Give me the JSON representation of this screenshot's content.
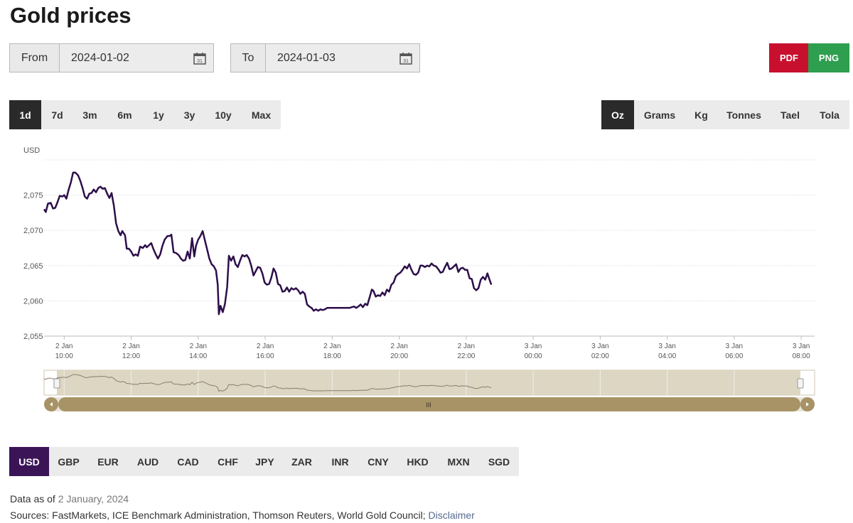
{
  "page": {
    "title": "Gold prices"
  },
  "date_range": {
    "from_label": "From",
    "from_value": "2024-01-02",
    "to_label": "To",
    "to_value": "2024-01-03",
    "calendar_day": "31"
  },
  "export": {
    "pdf_label": "PDF",
    "png_label": "PNG",
    "pdf_color": "#c8102e",
    "png_color": "#2e9e4f"
  },
  "range_buttons": [
    "1d",
    "7d",
    "3m",
    "6m",
    "1y",
    "3y",
    "10y",
    "Max"
  ],
  "range_active": "1d",
  "unit_buttons": [
    "Oz",
    "Grams",
    "Kg",
    "Tonnes",
    "Tael",
    "Tola"
  ],
  "unit_active": "Oz",
  "currency_buttons": [
    "USD",
    "GBP",
    "EUR",
    "AUD",
    "CAD",
    "CHF",
    "JPY",
    "ZAR",
    "INR",
    "CNY",
    "HKD",
    "MXN",
    "SGD"
  ],
  "currency_active": "USD",
  "navigator": {
    "handle_label": "III"
  },
  "footer": {
    "data_as_of_label": "Data as of",
    "data_as_of_value": "2 January, 2024",
    "sources_label": "Sources: FastMarkets, ICE Benchmark Administration, Thomson Reuters, World Gold Council;",
    "disclaimer_label": "Disclaimer"
  },
  "chart_data": {
    "type": "line",
    "title": "",
    "ylabel": "USD",
    "ylim": [
      2055,
      2080
    ],
    "yticks": [
      2055,
      2060,
      2065,
      2070,
      2075
    ],
    "ytick_labels": [
      "2,055",
      "2,060",
      "2,065",
      "2,070",
      "2,075"
    ],
    "xlim": [
      "2024-01-02 09:24",
      "2024-01-03 08:24"
    ],
    "xticks": [
      {
        "date": "2 Jan",
        "time": "10:00",
        "t": "2024-01-02 10:00"
      },
      {
        "date": "2 Jan",
        "time": "12:00",
        "t": "2024-01-02 12:00"
      },
      {
        "date": "2 Jan",
        "time": "14:00",
        "t": "2024-01-02 14:00"
      },
      {
        "date": "2 Jan",
        "time": "16:00",
        "t": "2024-01-02 16:00"
      },
      {
        "date": "2 Jan",
        "time": "18:00",
        "t": "2024-01-02 18:00"
      },
      {
        "date": "2 Jan",
        "time": "20:00",
        "t": "2024-01-02 20:00"
      },
      {
        "date": "2 Jan",
        "time": "22:00",
        "t": "2024-01-02 22:00"
      },
      {
        "date": "3 Jan",
        "time": "00:00",
        "t": "2024-01-03 00:00"
      },
      {
        "date": "3 Jan",
        "time": "02:00",
        "t": "2024-01-03 02:00"
      },
      {
        "date": "3 Jan",
        "time": "04:00",
        "t": "2024-01-03 04:00"
      },
      {
        "date": "3 Jan",
        "time": "06:00",
        "t": "2024-01-03 06:00"
      },
      {
        "date": "3 Jan",
        "time": "08:00",
        "t": "2024-01-03 08:00"
      }
    ],
    "grid": true,
    "line_color": "#2d0f4a",
    "series": [
      {
        "points": [
          [
            "2024-01-02 09:24",
            2073.0
          ],
          [
            "2024-01-02 09:27",
            2072.6
          ],
          [
            "2024-01-02 09:31",
            2073.8
          ],
          [
            "2024-01-02 09:36",
            2073.9
          ],
          [
            "2024-01-02 09:40",
            2073.1
          ],
          [
            "2024-01-02 09:44",
            2073.2
          ],
          [
            "2024-01-02 09:48",
            2074.0
          ],
          [
            "2024-01-02 09:52",
            2074.9
          ],
          [
            "2024-01-02 09:57",
            2074.8
          ],
          [
            "2024-01-02 10:00",
            2075.0
          ],
          [
            "2024-01-02 10:04",
            2074.5
          ],
          [
            "2024-01-02 10:08",
            2075.8
          ],
          [
            "2024-01-02 10:12",
            2076.8
          ],
          [
            "2024-01-02 10:16",
            2078.2
          ],
          [
            "2024-01-02 10:20",
            2078.2
          ],
          [
            "2024-01-02 10:25",
            2077.8
          ],
          [
            "2024-01-02 10:29",
            2077.0
          ],
          [
            "2024-01-02 10:33",
            2076.0
          ],
          [
            "2024-01-02 10:37",
            2074.8
          ],
          [
            "2024-01-02 10:41",
            2074.5
          ],
          [
            "2024-01-02 10:45",
            2075.2
          ],
          [
            "2024-01-02 10:49",
            2075.3
          ],
          [
            "2024-01-02 10:53",
            2075.8
          ],
          [
            "2024-01-02 10:57",
            2075.4
          ],
          [
            "2024-01-02 11:01",
            2076.0
          ],
          [
            "2024-01-02 11:05",
            2076.2
          ],
          [
            "2024-01-02 11:09",
            2075.9
          ],
          [
            "2024-01-02 11:13",
            2076.0
          ],
          [
            "2024-01-02 11:17",
            2075.2
          ],
          [
            "2024-01-02 11:21",
            2074.6
          ],
          [
            "2024-01-02 11:25",
            2075.3
          ],
          [
            "2024-01-02 11:29",
            2073.5
          ],
          [
            "2024-01-02 11:33",
            2071.0
          ],
          [
            "2024-01-02 11:37",
            2069.9
          ],
          [
            "2024-01-02 11:41",
            2069.3
          ],
          [
            "2024-01-02 11:44",
            2069.9
          ],
          [
            "2024-01-02 11:49",
            2069.3
          ],
          [
            "2024-01-02 11:52",
            2067.4
          ],
          [
            "2024-01-02 11:56",
            2067.4
          ],
          [
            "2024-01-02 12:00",
            2067.0
          ],
          [
            "2024-01-02 12:04",
            2066.4
          ],
          [
            "2024-01-02 12:08",
            2066.6
          ],
          [
            "2024-01-02 12:12",
            2066.4
          ],
          [
            "2024-01-02 12:16",
            2067.7
          ],
          [
            "2024-01-02 12:21",
            2067.5
          ],
          [
            "2024-01-02 12:25",
            2067.9
          ],
          [
            "2024-01-02 12:28",
            2067.6
          ],
          [
            "2024-01-02 12:32",
            2067.9
          ],
          [
            "2024-01-02 12:36",
            2068.2
          ],
          [
            "2024-01-02 12:40",
            2067.3
          ],
          [
            "2024-01-02 12:44",
            2066.6
          ],
          [
            "2024-01-02 12:48",
            2066.0
          ],
          [
            "2024-01-02 12:52",
            2066.6
          ],
          [
            "2024-01-02 12:56",
            2067.8
          ],
          [
            "2024-01-02 13:00",
            2068.7
          ],
          [
            "2024-01-02 13:05",
            2069.2
          ],
          [
            "2024-01-02 13:09",
            2069.2
          ],
          [
            "2024-01-02 13:12",
            2069.4
          ],
          [
            "2024-01-02 13:16",
            2066.9
          ],
          [
            "2024-01-02 13:20",
            2066.8
          ],
          [
            "2024-01-02 13:25",
            2066.5
          ],
          [
            "2024-01-02 13:29",
            2066.0
          ],
          [
            "2024-01-02 13:33",
            2065.7
          ],
          [
            "2024-01-02 13:37",
            2065.8
          ],
          [
            "2024-01-02 13:41",
            2067.0
          ],
          [
            "2024-01-02 13:45",
            2066.0
          ],
          [
            "2024-01-02 13:49",
            2068.9
          ],
          [
            "2024-01-02 13:53",
            2066.3
          ],
          [
            "2024-01-02 13:56",
            2067.8
          ],
          [
            "2024-01-02 14:00",
            2068.7
          ],
          [
            "2024-01-02 14:04",
            2069.2
          ],
          [
            "2024-01-02 14:08",
            2069.9
          ],
          [
            "2024-01-02 14:12",
            2068.6
          ],
          [
            "2024-01-02 14:16",
            2067.3
          ],
          [
            "2024-01-02 14:20",
            2066.0
          ],
          [
            "2024-01-02 14:24",
            2065.2
          ],
          [
            "2024-01-02 14:28",
            2064.9
          ],
          [
            "2024-01-02 14:32",
            2064.3
          ],
          [
            "2024-01-02 14:35",
            2062.3
          ],
          [
            "2024-01-02 14:37",
            2058.1
          ],
          [
            "2024-01-02 14:40",
            2059.3
          ],
          [
            "2024-01-02 14:44",
            2058.4
          ],
          [
            "2024-01-02 14:48",
            2059.6
          ],
          [
            "2024-01-02 14:52",
            2062.0
          ],
          [
            "2024-01-02 14:55",
            2066.4
          ],
          [
            "2024-01-02 14:59",
            2065.7
          ],
          [
            "2024-01-02 15:03",
            2066.3
          ],
          [
            "2024-01-02 15:07",
            2065.2
          ],
          [
            "2024-01-02 15:11",
            2064.8
          ],
          [
            "2024-01-02 15:15",
            2065.7
          ],
          [
            "2024-01-02 15:19",
            2066.5
          ],
          [
            "2024-01-02 15:23",
            2066.3
          ],
          [
            "2024-01-02 15:27",
            2066.5
          ],
          [
            "2024-01-02 15:31",
            2066.0
          ],
          [
            "2024-01-02 15:35",
            2065.0
          ],
          [
            "2024-01-02 15:39",
            2063.6
          ],
          [
            "2024-01-02 15:43",
            2064.2
          ],
          [
            "2024-01-02 15:47",
            2064.8
          ],
          [
            "2024-01-02 15:51",
            2064.7
          ],
          [
            "2024-01-02 15:55",
            2063.9
          ],
          [
            "2024-01-02 15:59",
            2062.6
          ],
          [
            "2024-01-02 16:03",
            2062.3
          ],
          [
            "2024-01-02 16:07",
            2062.4
          ],
          [
            "2024-01-02 16:11",
            2063.3
          ],
          [
            "2024-01-02 16:15",
            2064.6
          ],
          [
            "2024-01-02 16:19",
            2064.0
          ],
          [
            "2024-01-02 16:23",
            2062.4
          ],
          [
            "2024-01-02 16:27",
            2062.2
          ],
          [
            "2024-01-02 16:31",
            2061.3
          ],
          [
            "2024-01-02 16:35",
            2061.4
          ],
          [
            "2024-01-02 16:39",
            2061.9
          ],
          [
            "2024-01-02 16:43",
            2061.3
          ],
          [
            "2024-01-02 16:47",
            2061.8
          ],
          [
            "2024-01-02 16:51",
            2061.6
          ],
          [
            "2024-01-02 16:55",
            2061.8
          ],
          [
            "2024-01-02 16:59",
            2061.5
          ],
          [
            "2024-01-02 17:03",
            2061.0
          ],
          [
            "2024-01-02 17:07",
            2061.3
          ],
          [
            "2024-01-02 17:11",
            2061.0
          ],
          [
            "2024-01-02 17:15",
            2059.5
          ],
          [
            "2024-01-02 17:19",
            2059.2
          ],
          [
            "2024-01-02 17:23",
            2059.0
          ],
          [
            "2024-01-02 17:27",
            2058.6
          ],
          [
            "2024-01-02 17:31",
            2058.8
          ],
          [
            "2024-01-02 17:35",
            2058.6
          ],
          [
            "2024-01-02 17:39",
            2058.8
          ],
          [
            "2024-01-02 17:43",
            2058.7
          ],
          [
            "2024-01-02 17:47",
            2058.8
          ],
          [
            "2024-01-02 17:51",
            2059.0
          ],
          [
            "2024-01-02 17:59",
            2059.0
          ],
          [
            "2024-01-02 18:07",
            2059.0
          ],
          [
            "2024-01-02 18:15",
            2059.0
          ],
          [
            "2024-01-02 18:23",
            2059.0
          ],
          [
            "2024-01-02 18:31",
            2059.0
          ],
          [
            "2024-01-02 18:39",
            2059.2
          ],
          [
            "2024-01-02 18:43",
            2059.0
          ],
          [
            "2024-01-02 18:47",
            2059.2
          ],
          [
            "2024-01-02 18:51",
            2059.5
          ],
          [
            "2024-01-02 18:55",
            2059.1
          ],
          [
            "2024-01-02 18:59",
            2059.6
          ],
          [
            "2024-01-02 19:03",
            2059.4
          ],
          [
            "2024-01-02 19:07",
            2060.5
          ],
          [
            "2024-01-02 19:11",
            2061.6
          ],
          [
            "2024-01-02 19:14",
            2061.4
          ],
          [
            "2024-01-02 19:18",
            2060.6
          ],
          [
            "2024-01-02 19:22",
            2060.8
          ],
          [
            "2024-01-02 19:26",
            2060.7
          ],
          [
            "2024-01-02 19:30",
            2061.2
          ],
          [
            "2024-01-02 19:34",
            2060.8
          ],
          [
            "2024-01-02 19:38",
            2061.6
          ],
          [
            "2024-01-02 19:42",
            2061.3
          ],
          [
            "2024-01-02 19:46",
            2062.3
          ],
          [
            "2024-01-02 19:50",
            2062.6
          ],
          [
            "2024-01-02 19:54",
            2063.5
          ],
          [
            "2024-01-02 19:58",
            2063.8
          ],
          [
            "2024-01-02 20:02",
            2064.0
          ],
          [
            "2024-01-02 20:06",
            2064.4
          ],
          [
            "2024-01-02 20:10",
            2064.9
          ],
          [
            "2024-01-02 20:14",
            2064.6
          ],
          [
            "2024-01-02 20:18",
            2065.2
          ],
          [
            "2024-01-02 20:22",
            2064.4
          ],
          [
            "2024-01-02 20:26",
            2063.8
          ],
          [
            "2024-01-02 20:30",
            2063.7
          ],
          [
            "2024-01-02 20:34",
            2064.0
          ],
          [
            "2024-01-02 20:38",
            2065.0
          ],
          [
            "2024-01-02 20:42",
            2065.0
          ],
          [
            "2024-01-02 20:46",
            2064.8
          ],
          [
            "2024-01-02 20:50",
            2065.0
          ],
          [
            "2024-01-02 20:54",
            2064.9
          ],
          [
            "2024-01-02 20:58",
            2065.3
          ],
          [
            "2024-01-02 21:02",
            2065.0
          ],
          [
            "2024-01-02 21:06",
            2064.9
          ],
          [
            "2024-01-02 21:10",
            2064.5
          ],
          [
            "2024-01-02 21:14",
            2064.0
          ],
          [
            "2024-01-02 21:18",
            2064.1
          ],
          [
            "2024-01-02 21:22",
            2064.8
          ],
          [
            "2024-01-02 21:26",
            2065.4
          ],
          [
            "2024-01-02 21:30",
            2064.5
          ],
          [
            "2024-01-02 21:34",
            2064.6
          ],
          [
            "2024-01-02 21:38",
            2064.9
          ],
          [
            "2024-01-02 21:42",
            2065.2
          ],
          [
            "2024-01-02 21:46",
            2064.1
          ],
          [
            "2024-01-02 21:50",
            2064.6
          ],
          [
            "2024-01-02 21:54",
            2064.7
          ],
          [
            "2024-01-02 21:58",
            2064.4
          ],
          [
            "2024-01-02 22:02",
            2064.4
          ],
          [
            "2024-01-02 22:06",
            2063.2
          ],
          [
            "2024-01-02 22:10",
            2063.1
          ],
          [
            "2024-01-02 22:14",
            2061.8
          ],
          [
            "2024-01-02 22:18",
            2061.5
          ],
          [
            "2024-01-02 22:22",
            2061.8
          ],
          [
            "2024-01-02 22:26",
            2063.0
          ],
          [
            "2024-01-02 22:30",
            2063.4
          ],
          [
            "2024-01-02 22:34",
            2063.0
          ],
          [
            "2024-01-02 22:38",
            2063.9
          ],
          [
            "2024-01-02 22:41",
            2063.2
          ],
          [
            "2024-01-02 22:45",
            2062.3
          ]
        ]
      }
    ]
  }
}
